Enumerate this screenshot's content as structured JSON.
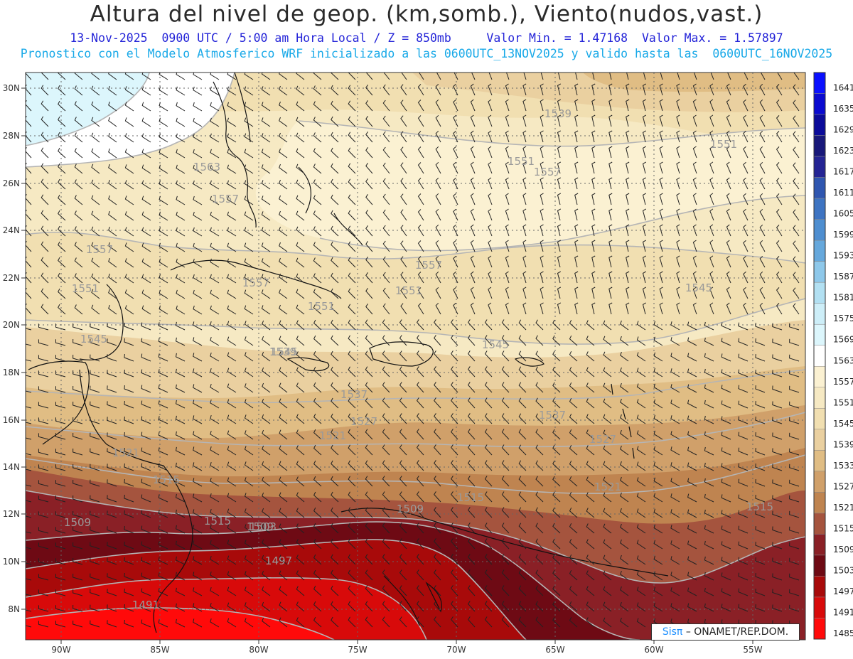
{
  "header": {
    "title": "Altura del nivel de geop. (km,somb.), Viento(nudos,vast.)",
    "subtitle_line1": "13-Nov-2025  0900 UTC / 5:00 am Hora Local / Z = 850mb     Valor Min. = 1.47168  Valor Max. = 1.57897",
    "subtitle_line2": "Pronostico con el Modelo Atmosferico WRF inicializado a las 0600UTC_13NOV2025 y valido hasta las  0600UTC_16NOV2025"
  },
  "map": {
    "lon_ticks": [
      "90W",
      "85W",
      "80W",
      "75W",
      "70W",
      "65W",
      "60W",
      "55W"
    ],
    "lat_ticks": [
      "30N",
      "28N",
      "26N",
      "24N",
      "22N",
      "20N",
      "18N",
      "16N",
      "14N",
      "12N",
      "10N",
      "8N"
    ],
    "contour_labels": [
      "1539",
      "1551",
      "1551",
      "1557",
      "1563",
      "1557",
      "1557",
      "1551",
      "1557",
      "1557",
      "1551",
      "1545",
      "1551",
      "1545",
      "1545",
      "1545",
      "1539",
      "1537",
      "1527",
      "1537",
      "1527",
      "1521",
      "1521",
      "1521",
      "1515",
      "1515",
      "1509",
      "1509",
      "1515",
      "1515",
      "1509",
      "1503",
      "1497",
      "1491"
    ]
  },
  "legend": {
    "levels": [
      "1641",
      "1635",
      "1629",
      "1623",
      "1617",
      "1611",
      "1605",
      "1599",
      "1593",
      "1587",
      "1581",
      "1575",
      "1569",
      "1563",
      "1557",
      "1551",
      "1545",
      "1539",
      "1533",
      "1527",
      "1521",
      "1515",
      "1509",
      "1503",
      "1497",
      "1491",
      "1485"
    ],
    "colors": [
      "#0a10ff",
      "#0a0ad0",
      "#0b0b9a",
      "#18187a",
      "#242494",
      "#2f56b0",
      "#3e74c2",
      "#4e8ed0",
      "#66a8dc",
      "#8ec8ea",
      "#b2e0f2",
      "#cdeef8",
      "#dcf6fc",
      "#ffffff",
      "#fbf1d2",
      "#f6e9c3",
      "#f1dfb1",
      "#ead0a0",
      "#e0bd84",
      "#d0a06a",
      "#bf8450",
      "#a5543e",
      "#8a2026",
      "#6e0a14",
      "#a80a0a",
      "#d80a0a",
      "#ff0a0a"
    ]
  },
  "credit": {
    "brand": "Sisπ",
    "text": "– ONAMET/REP.DOM."
  }
}
